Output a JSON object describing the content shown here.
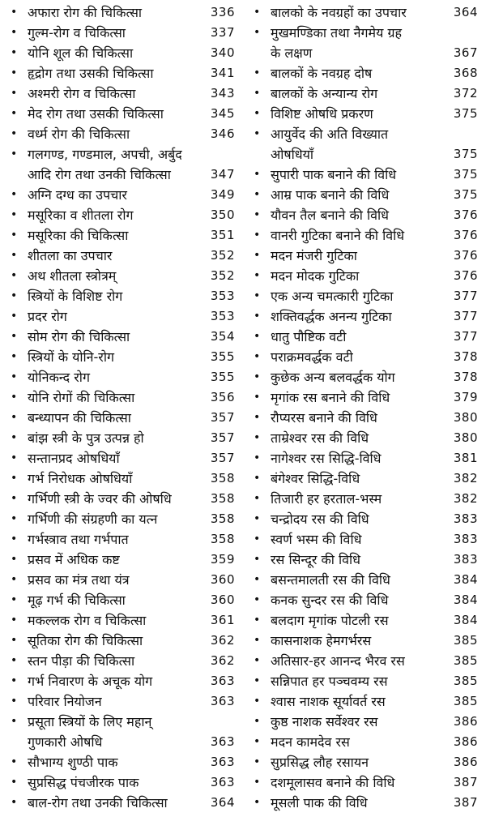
{
  "left_column": [
    {
      "lines": [
        "अफारा रोग की चिकित्सा"
      ],
      "page": "336"
    },
    {
      "lines": [
        "गुल्म-रोग व चिकित्सा"
      ],
      "page": "337"
    },
    {
      "lines": [
        "योनि शूल की चिकित्सा"
      ],
      "page": "340"
    },
    {
      "lines": [
        "हृद्रोग तथा उसकी चिकित्सा"
      ],
      "page": "341"
    },
    {
      "lines": [
        "अश्मरी रोग व चिकित्सा"
      ],
      "page": "343"
    },
    {
      "lines": [
        "मेद रोग तथा उसकी चिकित्सा"
      ],
      "page": "345"
    },
    {
      "lines": [
        "वर्ध्म रोग की चिकित्सा"
      ],
      "page": "346"
    },
    {
      "lines": [
        "गलगण्ड, गण्डमाल, अपची, अर्बुद",
        "आदि रोग तथा उनकी चिकित्सा"
      ],
      "page": "347"
    },
    {
      "lines": [
        "अग्नि दग्ध का उपचार"
      ],
      "page": "349"
    },
    {
      "lines": [
        "मसूरिका व शीतला रोग"
      ],
      "page": "350"
    },
    {
      "lines": [
        "मसूरिका की चिकित्सा"
      ],
      "page": "351"
    },
    {
      "lines": [
        "शीतला का उपचार"
      ],
      "page": "352"
    },
    {
      "lines": [
        "अथ शीतला स्त्रोत्रम्"
      ],
      "page": "352"
    },
    {
      "lines": [
        "स्त्रियों के विशिष्ट रोग"
      ],
      "page": "353"
    },
    {
      "lines": [
        "प्रदर रोग"
      ],
      "page": "353"
    },
    {
      "lines": [
        "सोम रोग की चिकित्सा"
      ],
      "page": "354"
    },
    {
      "lines": [
        "स्त्रियों के योनि-रोग"
      ],
      "page": "355"
    },
    {
      "lines": [
        "योनिकन्द रोग"
      ],
      "page": "355"
    },
    {
      "lines": [
        "योनि रोगों की चिकित्सा"
      ],
      "page": "356"
    },
    {
      "lines": [
        "बन्ध्यापन की चिकित्सा"
      ],
      "page": "357"
    },
    {
      "lines": [
        "बांझ स्त्री के पुत्र उत्पन्न हो"
      ],
      "page": "357"
    },
    {
      "lines": [
        "सन्तानप्रद ओषधियाँ"
      ],
      "page": "357"
    },
    {
      "lines": [
        "गर्भ निरोधक ओषधियाँ"
      ],
      "page": "358"
    },
    {
      "lines": [
        "गर्भिणी स्त्री के ज्वर की ओषधि"
      ],
      "page": "358"
    },
    {
      "lines": [
        "गर्भिणी की संग्रहणी का यत्न"
      ],
      "page": "358"
    },
    {
      "lines": [
        "गर्भस्त्राव तथा गर्भपात"
      ],
      "page": "358"
    },
    {
      "lines": [
        "प्रसव में अधिक कष्ट"
      ],
      "page": "359"
    },
    {
      "lines": [
        "प्रसव का मंत्र तथा यंत्र"
      ],
      "page": "360"
    },
    {
      "lines": [
        "मूढ़ गर्भ की चिकित्सा"
      ],
      "page": "360"
    },
    {
      "lines": [
        "मकल्लक रोग व चिकित्सा"
      ],
      "page": "361"
    },
    {
      "lines": [
        "सूतिका रोग की चिकित्सा"
      ],
      "page": "362"
    },
    {
      "lines": [
        "स्तन पीड़ा की चिकित्सा"
      ],
      "page": "362"
    },
    {
      "lines": [
        "गर्भ निवारण के अचूक योग"
      ],
      "page": "363"
    },
    {
      "lines": [
        "परिवार नियोजन"
      ],
      "page": "363"
    },
    {
      "lines": [
        "प्रसूता स्त्रियों के लिए महान्",
        "गुणकारी ओषधि"
      ],
      "page": "363"
    },
    {
      "lines": [
        "सौभाग्य शुण्ठी पाक"
      ],
      "page": "363"
    },
    {
      "lines": [
        "सुप्रसिद्ध पंचजीरक पाक"
      ],
      "page": "363"
    },
    {
      "lines": [
        "बाल-रोग तथा उनकी चिकित्सा"
      ],
      "page": "364"
    }
  ],
  "right_column": [
    {
      "lines": [
        "बालको के नवग्रहों का उपचार"
      ],
      "page": "364"
    },
    {
      "lines": [
        "मुखमण्डिका तथा नैगमेय ग्रह",
        "के लक्षण"
      ],
      "page": "367"
    },
    {
      "lines": [
        "बालकों के नवग्रह दोष"
      ],
      "page": "368"
    },
    {
      "lines": [
        "बालकों के अन्यान्य रोग"
      ],
      "page": "372"
    },
    {
      "lines": [
        "विशिष्ट ओषधि प्रकरण"
      ],
      "page": "375"
    },
    {
      "lines": [
        "आयुर्वेद की अति विख्यात",
        "ओषधियाँ"
      ],
      "page": "375"
    },
    {
      "lines": [
        "सुपारी पाक बनाने की विधि"
      ],
      "page": "375"
    },
    {
      "lines": [
        "आम्र पाक बनाने की विधि"
      ],
      "page": "375"
    },
    {
      "lines": [
        "यौवन तैल बनाने की विधि"
      ],
      "page": "376"
    },
    {
      "lines": [
        "वानरी गुटिका बनाने की विधि"
      ],
      "page": "376"
    },
    {
      "lines": [
        "मदन मंजरी गुटिका"
      ],
      "page": "376"
    },
    {
      "lines": [
        "मदन मोदक गुटिका"
      ],
      "page": "376"
    },
    {
      "lines": [
        "एक अन्य चमत्कारी गुटिका"
      ],
      "page": "377"
    },
    {
      "lines": [
        "शक्तिवर्द्धक अनन्य गुटिका"
      ],
      "page": "377"
    },
    {
      "lines": [
        "धातु पौष्टिक वटी"
      ],
      "page": "377"
    },
    {
      "lines": [
        "पराक्रमवर्द्धक वटी"
      ],
      "page": "378"
    },
    {
      "lines": [
        "कुछेक अन्य बलवर्द्धक योग"
      ],
      "page": "378"
    },
    {
      "lines": [
        "मृगांक रस बनाने की विधि"
      ],
      "page": "379"
    },
    {
      "lines": [
        "रौप्यरस बनाने की विधि"
      ],
      "page": "380"
    },
    {
      "lines": [
        "ताम्रेश्वर रस की विधि"
      ],
      "page": "380"
    },
    {
      "lines": [
        "नागेश्वर रस सिद्धि-विधि"
      ],
      "page": "381"
    },
    {
      "lines": [
        "बंगेश्वर सिद्धि-विधि"
      ],
      "page": "382"
    },
    {
      "lines": [
        "तिजारी हर हरताल-भस्म"
      ],
      "page": "382"
    },
    {
      "lines": [
        "चन्द्रोदय रस की विधि"
      ],
      "page": "383"
    },
    {
      "lines": [
        "स्वर्ण भस्म की विधि"
      ],
      "page": "383"
    },
    {
      "lines": [
        "रस सिन्दूर की विधि"
      ],
      "page": "383"
    },
    {
      "lines": [
        "बसन्तमालती रस की विधि"
      ],
      "page": "384"
    },
    {
      "lines": [
        "कनक सुन्दर रस की विधि"
      ],
      "page": "384"
    },
    {
      "lines": [
        "बलदाग मृगांक पोटली रस"
      ],
      "page": "384"
    },
    {
      "lines": [
        "कासनाशक हेमगर्भरस"
      ],
      "page": "385"
    },
    {
      "lines": [
        "अतिसार-हर आनन्द भैरव रस"
      ],
      "page": "385"
    },
    {
      "lines": [
        "सन्निपात हर पञ्चवम्य रस"
      ],
      "page": "385"
    },
    {
      "lines": [
        "श्वास नाशक सूर्यावर्त रस"
      ],
      "page": "385"
    },
    {
      "lines": [
        "कुष्ठ नाशक सर्वेश्वर रस"
      ],
      "page": "386"
    },
    {
      "lines": [
        "मदन कामदेव रस"
      ],
      "page": "386"
    },
    {
      "lines": [
        "सुप्रसिद्ध लौह रसायन"
      ],
      "page": "386"
    },
    {
      "lines": [
        "दशमूलासव बनाने की विधि"
      ],
      "page": "387"
    },
    {
      "lines": [
        "मूसली पाक की विधि"
      ],
      "page": "387"
    }
  ]
}
